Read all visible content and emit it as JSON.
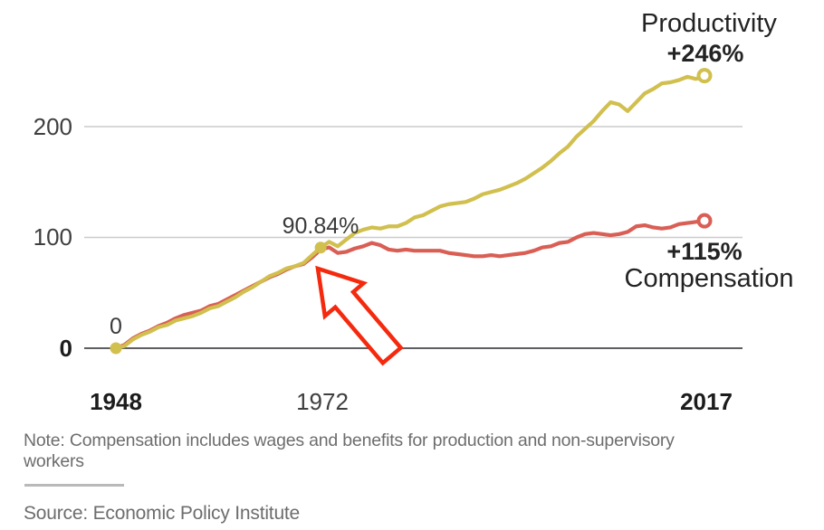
{
  "chart_data": {
    "type": "line",
    "x": [
      1948,
      1949,
      1950,
      1951,
      1952,
      1953,
      1954,
      1955,
      1956,
      1957,
      1958,
      1959,
      1960,
      1961,
      1962,
      1963,
      1964,
      1965,
      1966,
      1967,
      1968,
      1969,
      1970,
      1971,
      1972,
      1973,
      1974,
      1975,
      1976,
      1977,
      1978,
      1979,
      1980,
      1981,
      1982,
      1983,
      1984,
      1985,
      1986,
      1987,
      1988,
      1989,
      1990,
      1991,
      1992,
      1993,
      1994,
      1995,
      1996,
      1997,
      1998,
      1999,
      2000,
      2001,
      2002,
      2003,
      2004,
      2005,
      2006,
      2007,
      2008,
      2009,
      2010,
      2011,
      2012,
      2013,
      2014,
      2015,
      2016,
      2017
    ],
    "series": [
      {
        "name": "Productivity",
        "color": "#d1bf4e",
        "end_label": "+246%",
        "values": [
          0,
          2,
          8,
          12,
          15,
          19,
          21,
          25,
          27,
          29,
          32,
          36,
          38,
          42,
          46,
          51,
          55,
          60,
          65,
          68,
          72,
          74,
          77,
          84,
          90.84,
          96,
          92,
          98,
          104,
          107,
          109,
          108,
          110,
          110,
          113,
          118,
          120,
          124,
          128,
          130,
          131,
          132,
          135,
          139,
          141,
          143,
          146,
          149,
          153,
          158,
          163,
          169,
          176,
          182,
          191,
          198,
          205,
          214,
          222,
          220,
          214,
          222,
          230,
          234,
          239,
          240,
          242,
          245,
          243,
          246
        ]
      },
      {
        "name": "Compensation",
        "color": "#d95f55",
        "end_label": "+115%",
        "values": [
          0,
          3,
          9,
          13,
          16,
          20,
          23,
          27,
          30,
          32,
          34,
          38,
          40,
          44,
          48,
          52,
          56,
          60,
          64,
          67,
          71,
          74,
          76,
          82,
          89,
          91,
          86,
          87,
          90,
          92,
          95,
          93,
          89,
          88,
          89,
          88,
          88,
          88,
          88,
          86,
          85,
          84,
          83,
          83,
          84,
          83,
          84,
          85,
          86,
          88,
          91,
          92,
          95,
          96,
          100,
          103,
          104,
          103,
          102,
          103,
          105,
          110,
          111,
          109,
          108,
          109,
          112,
          113,
          114,
          115
        ]
      }
    ],
    "yticks": [
      0,
      100,
      200
    ],
    "xticks": [
      1948,
      1972,
      2017
    ],
    "ylim": [
      0,
      260
    ],
    "grid": "horizontal",
    "legend_position": "end-of-line",
    "annotations": [
      {
        "year": 1948,
        "value": 0,
        "label": "0"
      },
      {
        "year": 1972,
        "value": 90.84,
        "label": "90.84%"
      }
    ]
  },
  "footer": {
    "note": "Note: Compensation includes wages and benefits for production and non-supervisory workers",
    "source": "Source: Economic Policy Institute"
  },
  "colors": {
    "productivity": "#d1bf4e",
    "compensation": "#d95f55",
    "arrow": "#f5290d",
    "gridline": "#cbcbcb",
    "zero_axis": "#5f5f61"
  }
}
